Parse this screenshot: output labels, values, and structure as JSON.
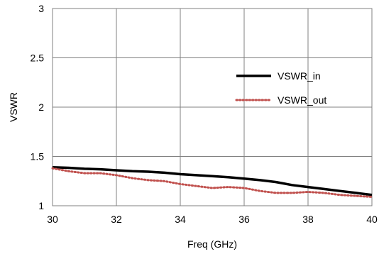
{
  "chart_data": {
    "type": "line",
    "title": "",
    "xlabel": "Freq (GHz)",
    "ylabel": "VSWR",
    "xlim": [
      30,
      40
    ],
    "ylim": [
      1,
      3
    ],
    "x_ticks": [
      30,
      32,
      34,
      36,
      38,
      40
    ],
    "x_tick_labels": [
      "30",
      "32",
      "34",
      "36",
      "38",
      "40"
    ],
    "y_ticks": [
      1,
      1.5,
      2,
      2.5,
      3
    ],
    "y_tick_labels": [
      "1",
      "1.5",
      "2",
      "2.5",
      "3"
    ],
    "grid": true,
    "legend_position": "right",
    "series": [
      {
        "name": "VSWR_in",
        "color": "#000000",
        "style": "solid",
        "x": [
          30,
          30.5,
          31,
          31.5,
          32,
          32.5,
          33,
          33.5,
          34,
          34.5,
          35,
          35.5,
          36,
          36.5,
          37,
          37.5,
          38,
          38.5,
          39,
          39.5,
          40
        ],
        "y": [
          1.39,
          1.385,
          1.375,
          1.37,
          1.36,
          1.35,
          1.345,
          1.335,
          1.32,
          1.31,
          1.3,
          1.29,
          1.275,
          1.26,
          1.24,
          1.21,
          1.19,
          1.17,
          1.15,
          1.13,
          1.11
        ]
      },
      {
        "name": "VSWR_out",
        "color": "#c0504d",
        "style": "dotted",
        "x": [
          30,
          30.5,
          31,
          31.5,
          32,
          32.5,
          33,
          33.5,
          34,
          34.5,
          35,
          35.5,
          36,
          36.5,
          37,
          37.5,
          38,
          38.5,
          39,
          39.5,
          40
        ],
        "y": [
          1.38,
          1.35,
          1.33,
          1.33,
          1.31,
          1.28,
          1.26,
          1.25,
          1.22,
          1.2,
          1.18,
          1.19,
          1.18,
          1.15,
          1.13,
          1.13,
          1.14,
          1.13,
          1.11,
          1.1,
          1.09
        ]
      }
    ]
  }
}
